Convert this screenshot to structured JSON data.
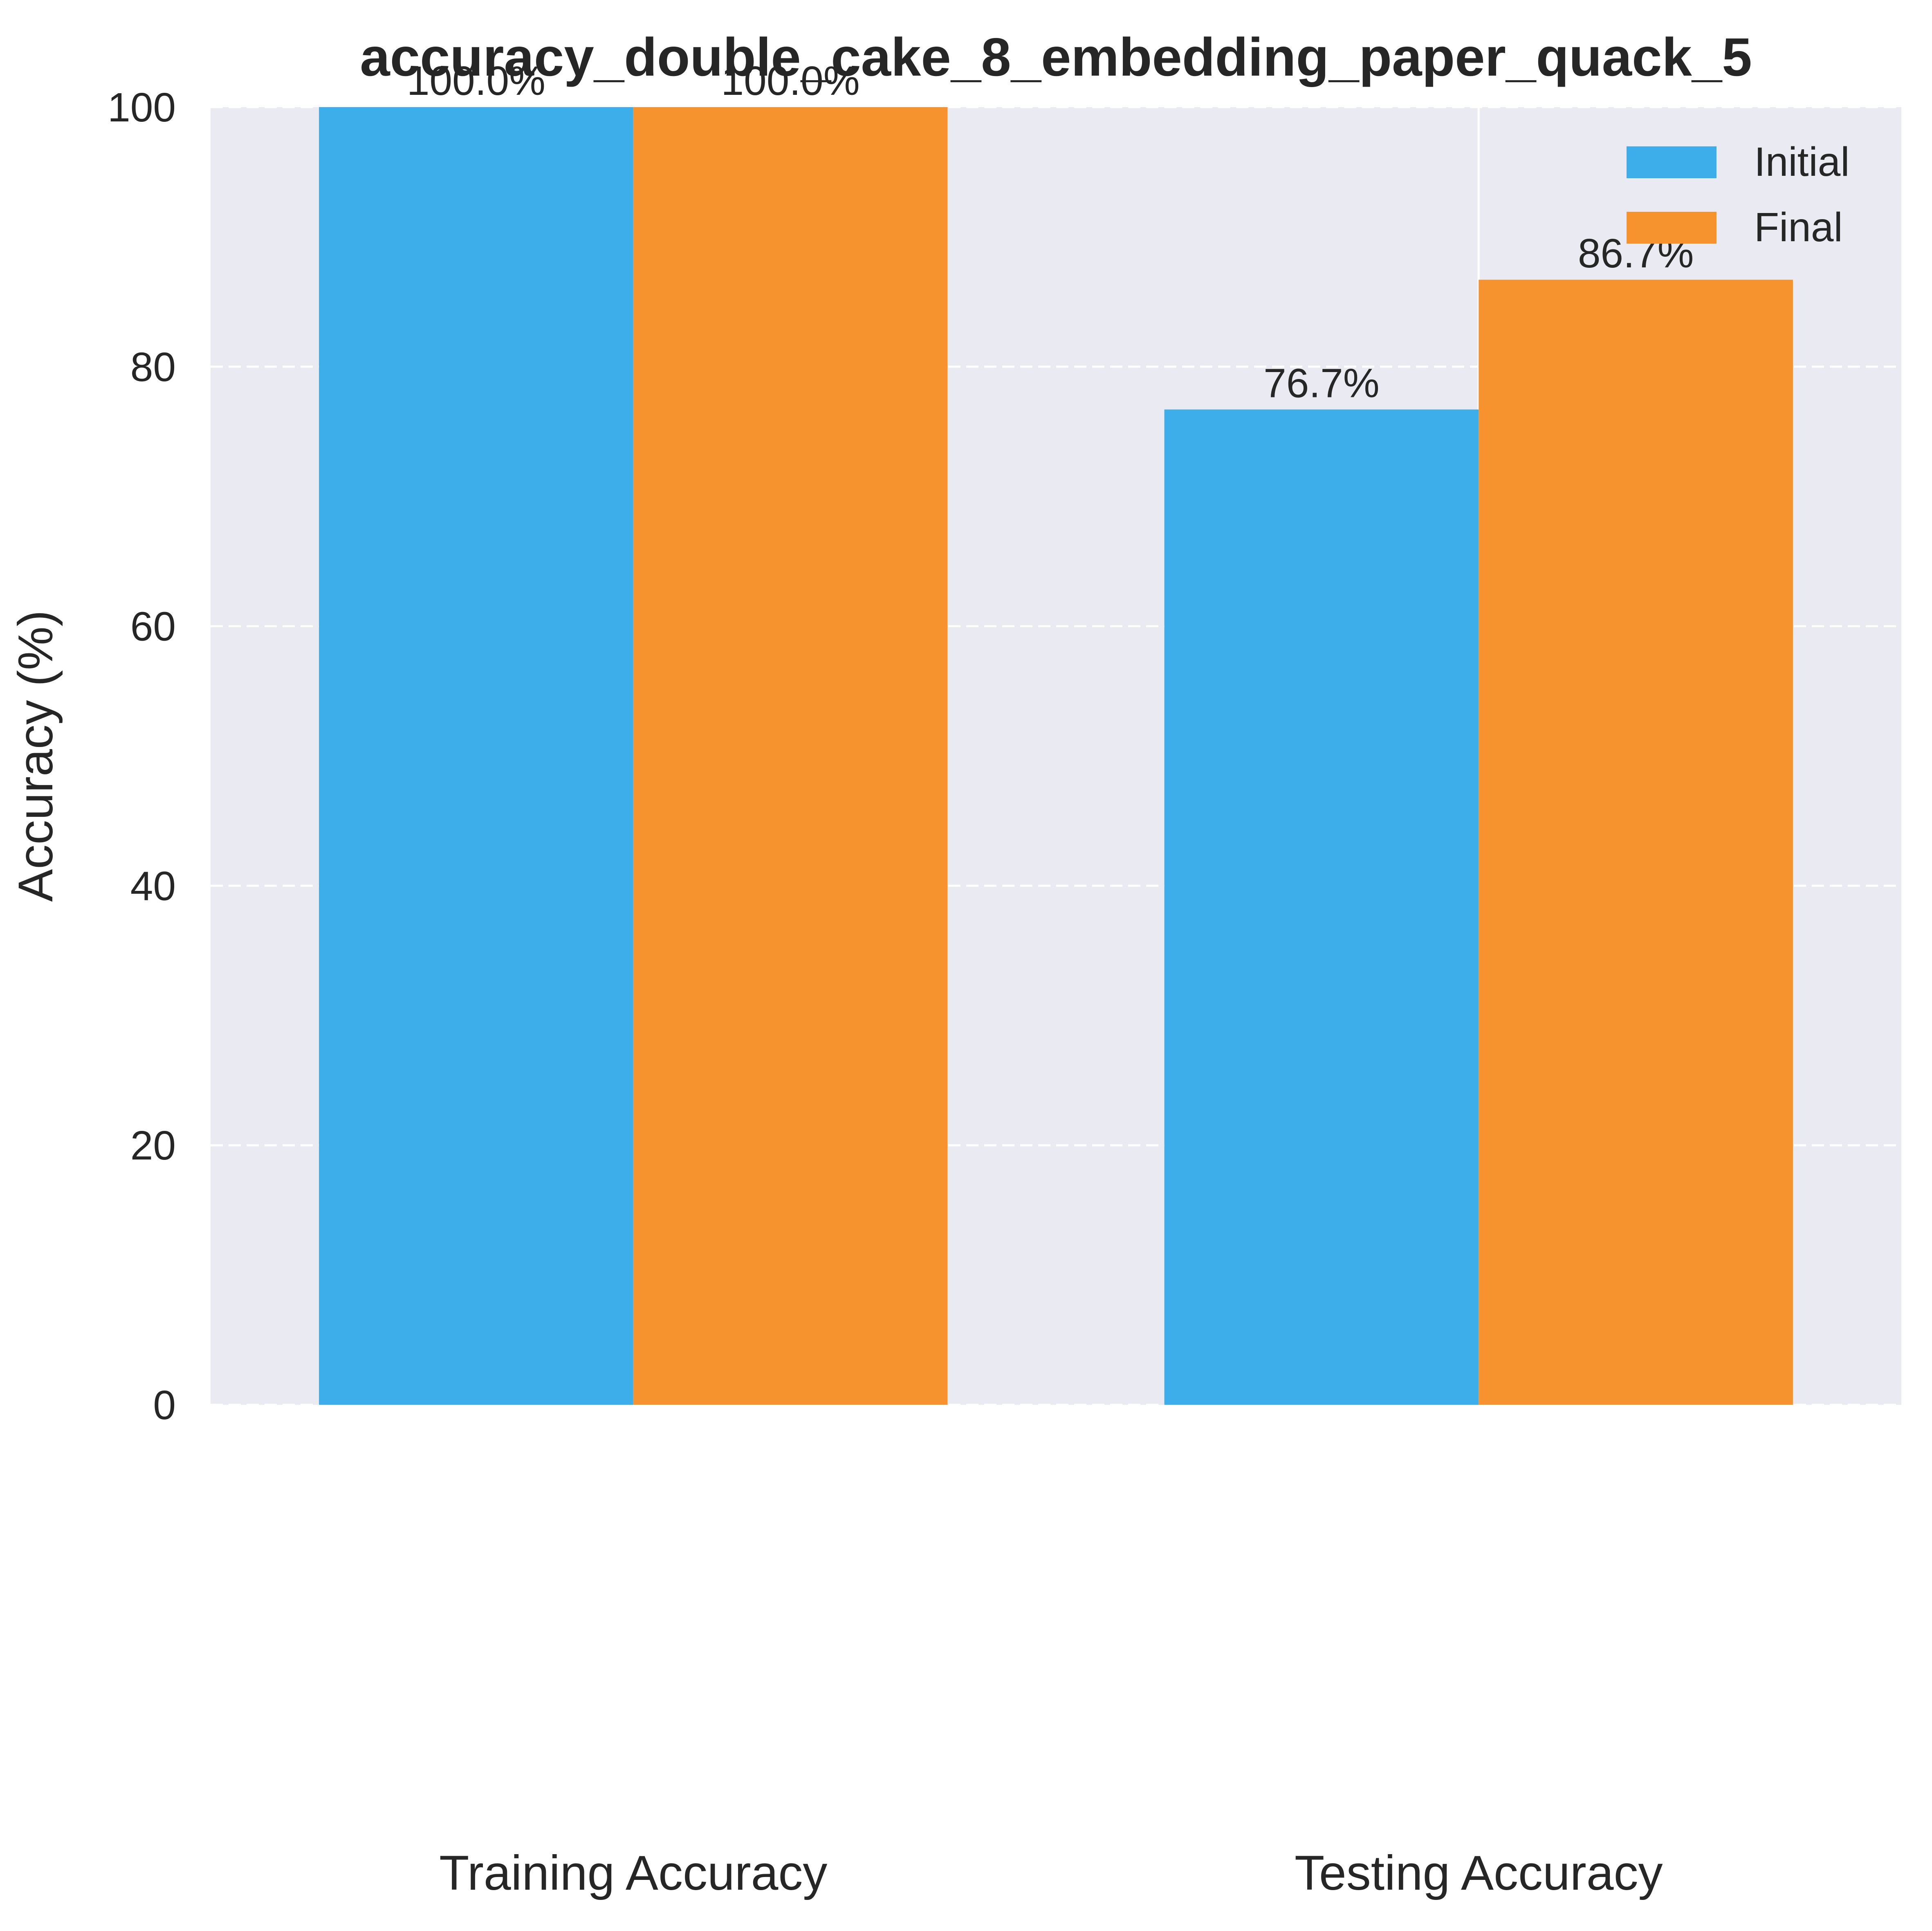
{
  "chart_data": {
    "type": "bar",
    "title": "accuracy_double_cake_8_embedding_paper_quack_5",
    "xlabel": "",
    "ylabel": "Accuracy (%)",
    "categories": [
      "Training Accuracy",
      "Testing Accuracy"
    ],
    "series": [
      {
        "name": "Initial",
        "values": [
          100.0,
          76.7
        ],
        "labels": [
          "100.0%",
          "76.7%"
        ],
        "color": "#3daeea"
      },
      {
        "name": "Final",
        "values": [
          100.0,
          86.7
        ],
        "labels": [
          "100.0%",
          "86.7%"
        ],
        "color": "#f6932f"
      }
    ],
    "ylim": [
      0,
      100
    ],
    "yticks": [
      0,
      20,
      40,
      60,
      80,
      100
    ],
    "grid": true,
    "legend": "top-right",
    "colors": {
      "plot_background": "#eaeaf2",
      "grid": "#ffffff",
      "text": "#262626"
    }
  }
}
